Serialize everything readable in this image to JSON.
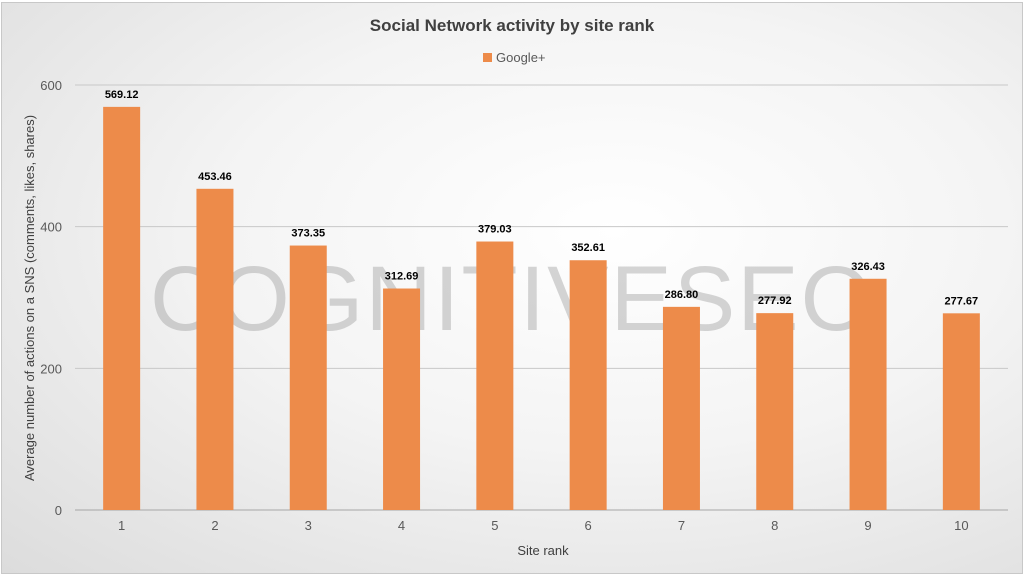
{
  "chart_data": {
    "type": "bar",
    "title": "Social Network activity by site rank",
    "xlabel": "Site rank",
    "ylabel": "Average number of actions on a SNS (comments, likes, shares)",
    "categories": [
      "1",
      "2",
      "3",
      "4",
      "5",
      "6",
      "7",
      "8",
      "9",
      "10"
    ],
    "series": [
      {
        "name": "Google+",
        "values": [
          569.12,
          453.46,
          373.35,
          312.69,
          379.03,
          352.61,
          286.8,
          277.92,
          326.43,
          277.67
        ],
        "color": "#ED8B4A"
      }
    ],
    "data_labels": [
      "569.12",
      "453.46",
      "373.35",
      "312.69",
      "379.03",
      "352.61",
      "286.80",
      "277.92",
      "326.43",
      "277.67"
    ],
    "ylim": [
      0,
      600
    ],
    "yticks": [
      0,
      200,
      400,
      600
    ],
    "grid": true,
    "legend": "top-center"
  },
  "watermark": "COGNITIVESEO"
}
